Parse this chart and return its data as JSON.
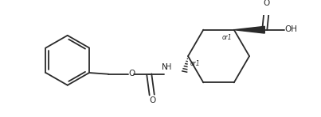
{
  "bg_color": "#ffffff",
  "line_color": "#2a2a2a",
  "bond_lw": 1.3,
  "fig_width": 4.03,
  "fig_height": 1.48,
  "dpi": 100,
  "xlim": [
    0,
    403
  ],
  "ylim": [
    0,
    148
  ]
}
